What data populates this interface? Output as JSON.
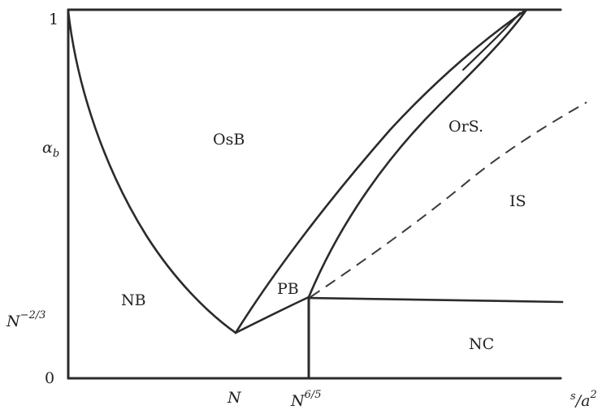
{
  "diagram": {
    "regions": {
      "osb": "OsB",
      "ors": "OrS.",
      "is": "IS",
      "nb": "NB",
      "pb": "PB",
      "nc": "NC"
    },
    "y_axis": {
      "label_main": "α",
      "label_sub": "b",
      "tick_top": "1",
      "tick_mid_base": "N",
      "tick_mid_exp": "−2/3",
      "tick_bottom": "0"
    },
    "x_axis": {
      "tick_n": "N",
      "tick_n65_base": "N",
      "tick_n65_exp": "6/5",
      "label_s": "s",
      "label_slash": "/",
      "label_a": "a",
      "label_a_exp": "2"
    }
  }
}
